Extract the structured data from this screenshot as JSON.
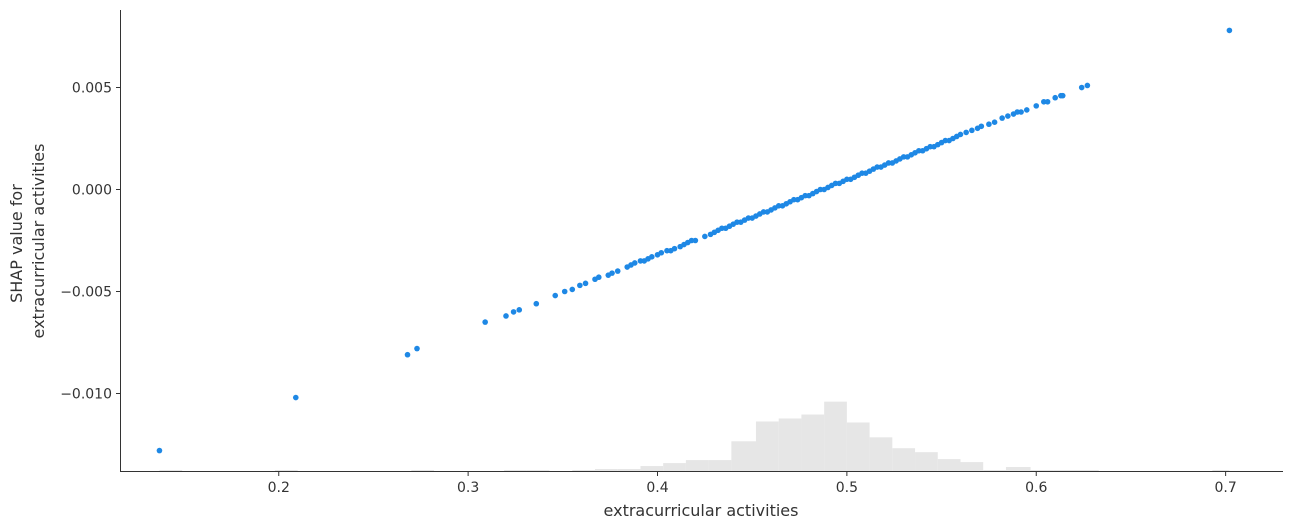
{
  "chart_data": {
    "type": "scatter",
    "xlabel": "extracurricular activities",
    "ylabel_lines": [
      "SHAP value for",
      "extracurricular activities"
    ],
    "xlim": [
      0.1167,
      0.7303
    ],
    "ylim": [
      -0.0138,
      0.0088
    ],
    "xticks": [
      0.2,
      0.3,
      0.4,
      0.5,
      0.6,
      0.7
    ],
    "xtick_labels": [
      "0.2",
      "0.3",
      "0.4",
      "0.5",
      "0.6",
      "0.7"
    ],
    "yticks": [
      -0.01,
      -0.005,
      0.0,
      0.005
    ],
    "ytick_labels": [
      "−0.010",
      "−0.005",
      "0.000",
      "0.005"
    ],
    "grid": false,
    "point_color": "#1e88e5",
    "hist_color": "#e6e6e6",
    "linear_fit": {
      "slope": 0.0367,
      "x_at_zero": 0.4872
    },
    "series": [
      {
        "x": [
          0.137,
          0.209,
          0.268,
          0.273,
          0.309,
          0.32,
          0.324,
          0.327,
          0.336,
          0.346,
          0.351,
          0.355,
          0.359,
          0.362,
          0.367,
          0.369,
          0.374,
          0.376,
          0.379,
          0.384,
          0.386,
          0.388,
          0.391,
          0.393,
          0.395,
          0.397,
          0.4,
          0.402,
          0.405,
          0.407,
          0.409,
          0.412,
          0.414,
          0.416,
          0.418,
          0.42,
          0.425,
          0.428,
          0.43,
          0.432,
          0.434,
          0.436,
          0.438,
          0.44,
          0.442,
          0.444,
          0.446,
          0.448,
          0.45,
          0.452,
          0.454,
          0.456,
          0.458,
          0.46,
          0.462,
          0.464,
          0.466,
          0.468,
          0.47,
          0.472,
          0.474,
          0.476,
          0.478,
          0.48,
          0.482,
          0.484,
          0.486,
          0.488,
          0.49,
          0.492,
          0.494,
          0.496,
          0.498,
          0.5,
          0.502,
          0.504,
          0.506,
          0.508,
          0.51,
          0.512,
          0.514,
          0.516,
          0.518,
          0.52,
          0.522,
          0.524,
          0.526,
          0.528,
          0.53,
          0.532,
          0.534,
          0.536,
          0.538,
          0.54,
          0.542,
          0.544,
          0.546,
          0.548,
          0.55,
          0.552,
          0.554,
          0.556,
          0.558,
          0.56,
          0.563,
          0.566,
          0.569,
          0.571,
          0.575,
          0.578,
          0.582,
          0.585,
          0.588,
          0.59,
          0.592,
          0.595,
          0.6,
          0.604,
          0.606,
          0.61,
          0.613,
          0.614,
          0.624,
          0.627,
          0.702
        ],
        "y": [
          -0.0128,
          -0.0102,
          -0.0081,
          -0.0078,
          -0.0065,
          -0.0062,
          -0.006,
          -0.0059,
          -0.0056,
          -0.0052,
          -0.005,
          -0.0049,
          -0.0047,
          -0.0046,
          -0.0044,
          -0.0043,
          -0.0042,
          -0.0041,
          -0.004,
          -0.0038,
          -0.0037,
          -0.0036,
          -0.0035,
          -0.0035,
          -0.0034,
          -0.0033,
          -0.0032,
          -0.0031,
          -0.003,
          -0.003,
          -0.0029,
          -0.0028,
          -0.0027,
          -0.0026,
          -0.0025,
          -0.0025,
          -0.0023,
          -0.0022,
          -0.0021,
          -0.002,
          -0.0019,
          -0.0019,
          -0.0018,
          -0.0017,
          -0.0016,
          -0.0016,
          -0.0015,
          -0.0014,
          -0.0014,
          -0.0013,
          -0.0012,
          -0.0011,
          -0.0011,
          -0.001,
          -0.0009,
          -0.0008,
          -0.0008,
          -0.0007,
          -0.0006,
          -0.0005,
          -0.0005,
          -0.0004,
          -0.0003,
          -0.0003,
          -0.0002,
          -0.0001,
          -0.0,
          0.0,
          0.0001,
          0.0002,
          0.0003,
          0.0003,
          0.0004,
          0.0005,
          0.0005,
          0.0006,
          0.0007,
          0.0008,
          0.0008,
          0.0009,
          0.001,
          0.0011,
          0.0011,
          0.0012,
          0.0013,
          0.0013,
          0.0014,
          0.0015,
          0.0016,
          0.0016,
          0.0017,
          0.0018,
          0.0019,
          0.0019,
          0.002,
          0.0021,
          0.0021,
          0.0022,
          0.0023,
          0.0024,
          0.0024,
          0.0025,
          0.0026,
          0.0027,
          0.0028,
          0.0029,
          0.003,
          0.0031,
          0.0032,
          0.0033,
          0.0035,
          0.0036,
          0.0037,
          0.0038,
          0.0038,
          0.0039,
          0.0041,
          0.0043,
          0.0043,
          0.0045,
          0.0046,
          0.0046,
          0.005,
          0.0051,
          0.0078
        ]
      }
    ],
    "histogram": {
      "bin_edges": [
        0.137,
        0.149,
        0.161,
        0.173,
        0.186,
        0.198,
        0.21,
        0.222,
        0.234,
        0.246,
        0.258,
        0.27,
        0.282,
        0.294,
        0.307,
        0.319,
        0.331,
        0.343,
        0.355,
        0.367,
        0.379,
        0.391,
        0.403,
        0.415,
        0.427,
        0.439,
        0.452,
        0.464,
        0.476,
        0.488,
        0.5,
        0.512,
        0.524,
        0.536,
        0.548,
        0.56,
        0.572,
        0.584,
        0.597,
        0.609,
        0.621,
        0.633,
        0.645,
        0.657,
        0.669,
        0.681,
        0.693,
        0.702
      ],
      "heights": [
        0.005,
        0,
        0,
        0,
        0,
        0.005,
        0,
        0,
        0,
        0,
        0,
        0.005,
        0,
        0,
        0,
        0.005,
        0.01,
        0,
        0.01,
        0.02,
        0.02,
        0.05,
        0.08,
        0.11,
        0.11,
        0.3,
        0.5,
        0.53,
        0.57,
        0.7,
        0.49,
        0.34,
        0.23,
        0.19,
        0.12,
        0.09,
        0.01,
        0.04,
        0.01,
        0.01,
        0.005,
        0,
        0,
        0,
        0,
        0,
        0.005
      ],
      "max_height_y_value": -0.0104,
      "baseline_y_value": -0.0138
    }
  }
}
